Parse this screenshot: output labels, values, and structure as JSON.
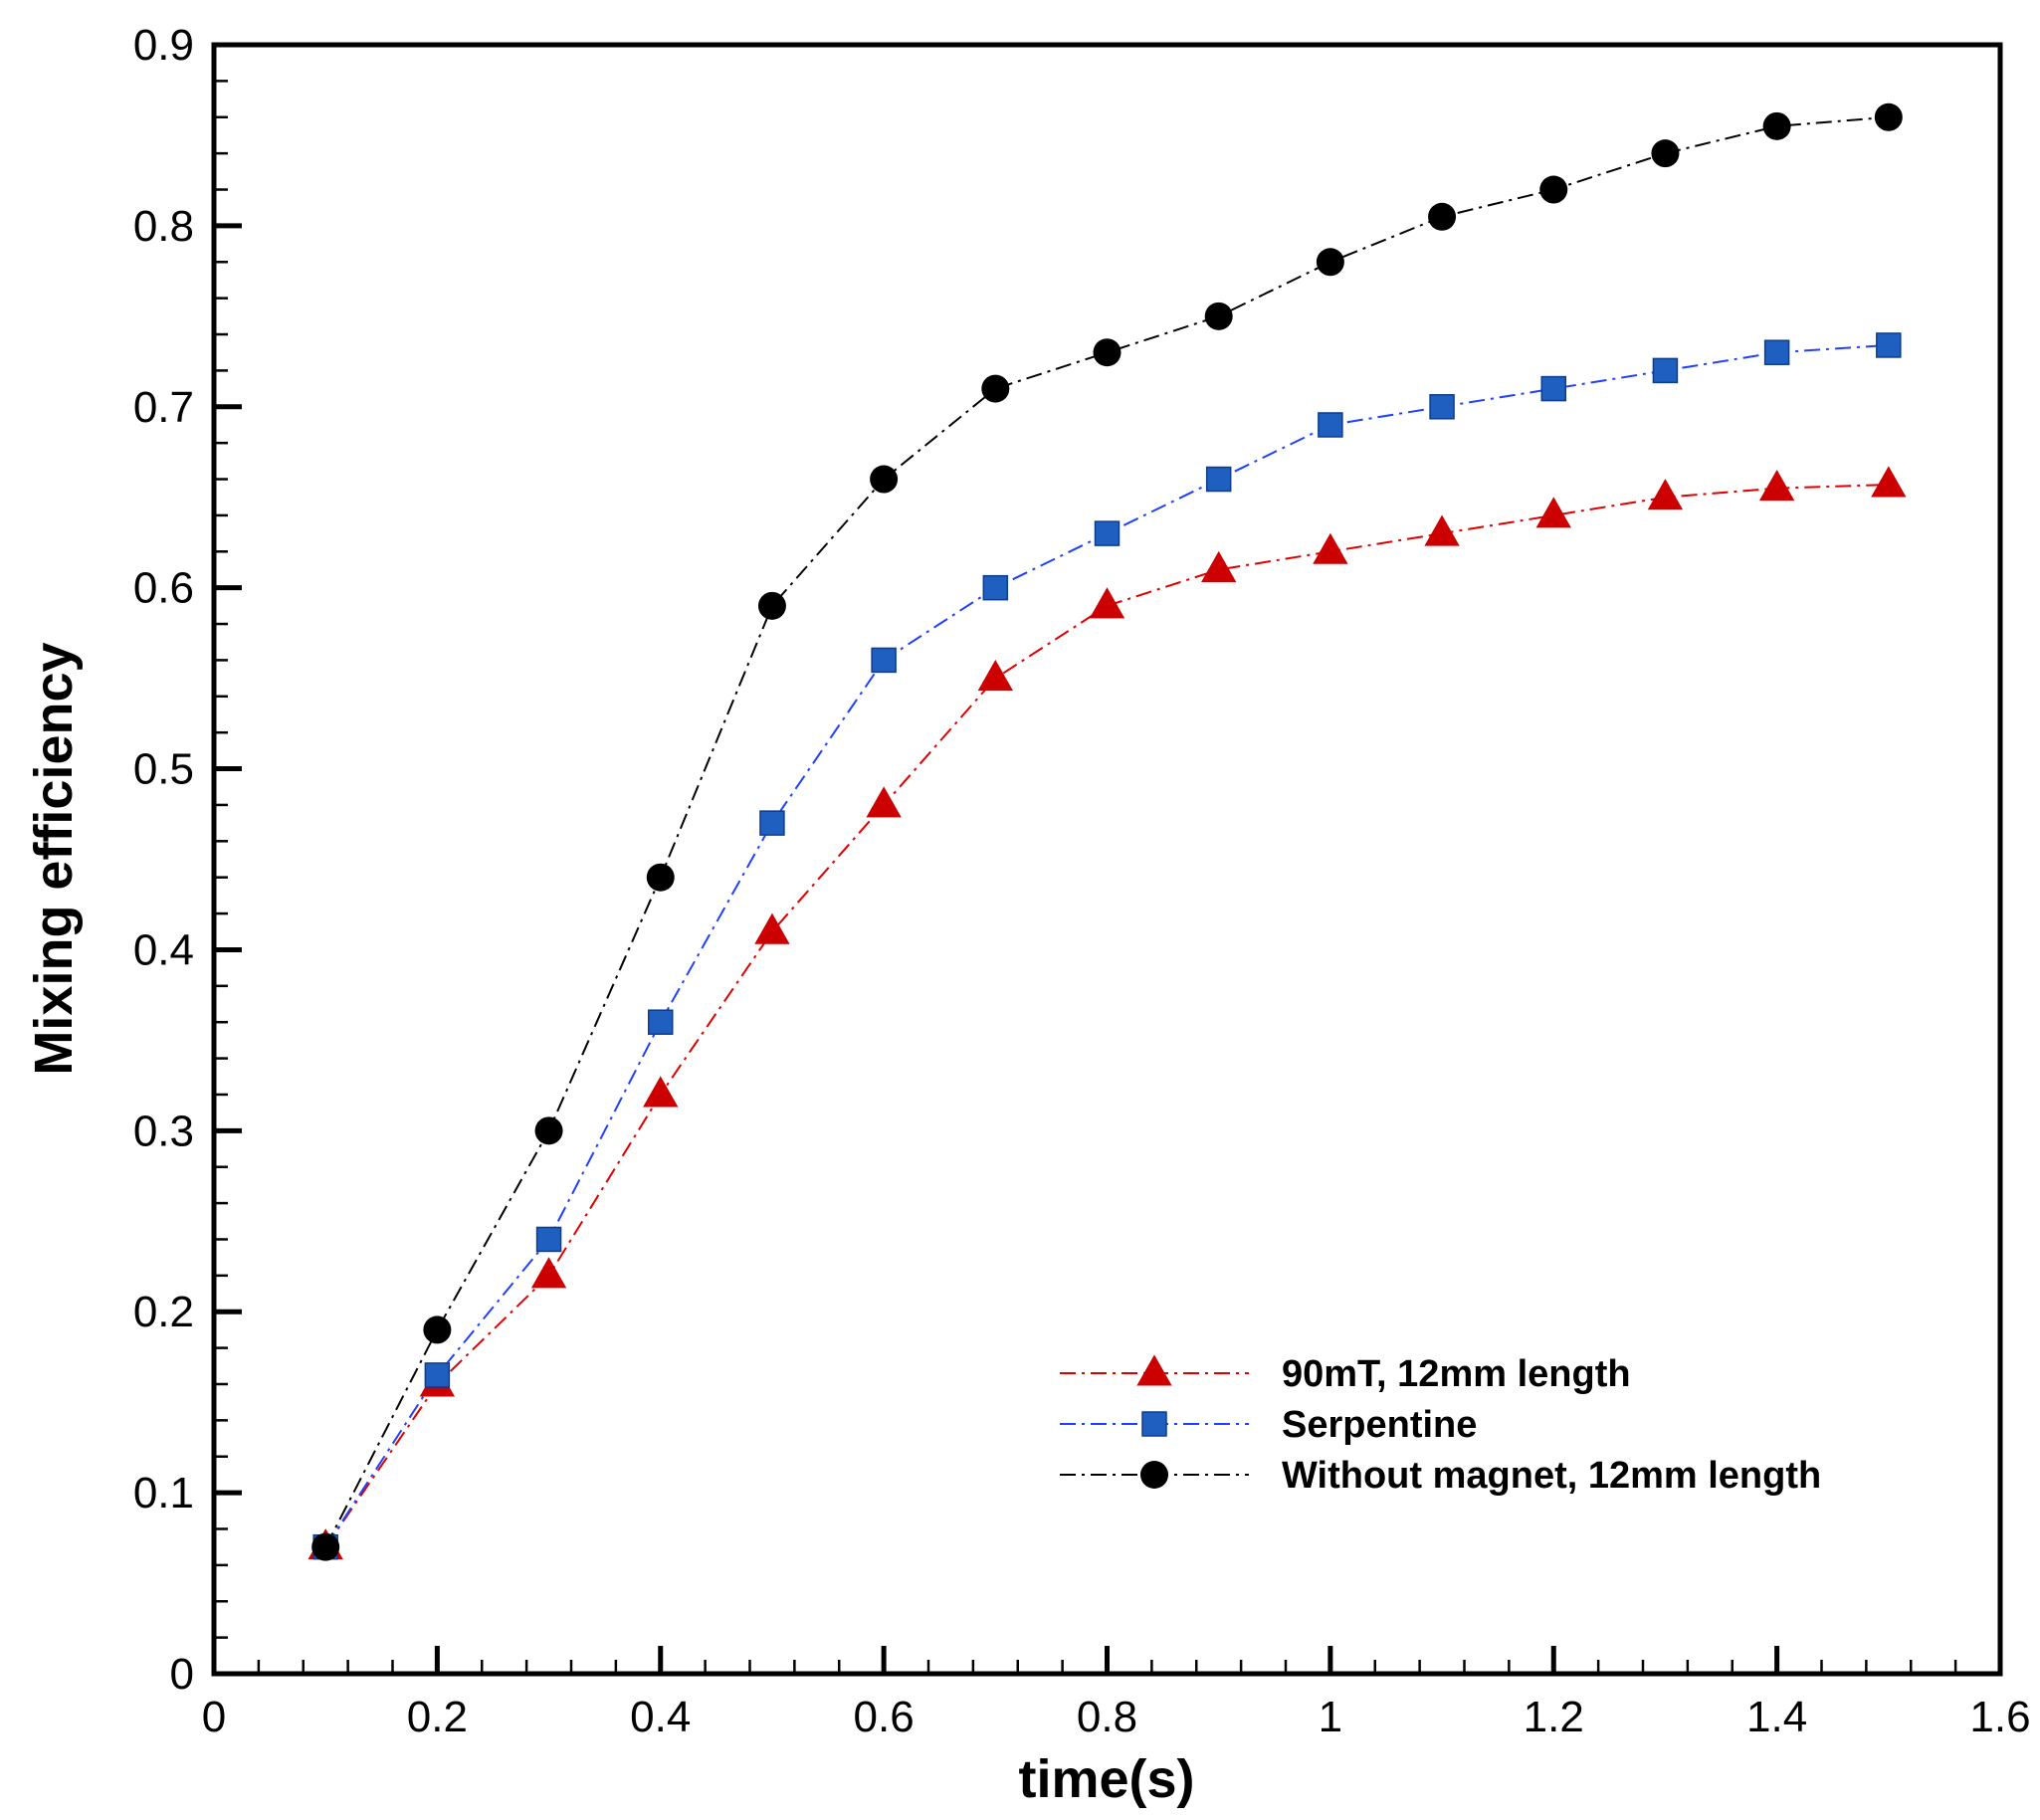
{
  "chart_data": {
    "type": "line",
    "title": "",
    "xlabel": "time(s)",
    "ylabel": "Mixing efficiency",
    "xlim": [
      0,
      1.6
    ],
    "ylim": [
      0,
      0.9
    ],
    "grid": false,
    "legend_position": "lower-right",
    "x_ticks": [
      {
        "value": 0,
        "label": "0"
      },
      {
        "value": 0.2,
        "label": "0.2"
      },
      {
        "value": 0.4,
        "label": "0.4"
      },
      {
        "value": 0.6,
        "label": "0.6"
      },
      {
        "value": 0.8,
        "label": "0.8"
      },
      {
        "value": 1.0,
        "label": "1"
      },
      {
        "value": 1.2,
        "label": "1.2"
      },
      {
        "value": 1.4,
        "label": "1.4"
      },
      {
        "value": 1.6,
        "label": "1.6"
      }
    ],
    "y_ticks": [
      {
        "value": 0,
        "label": "0"
      },
      {
        "value": 0.1,
        "label": "0.1"
      },
      {
        "value": 0.2,
        "label": "0.2"
      },
      {
        "value": 0.3,
        "label": "0.3"
      },
      {
        "value": 0.4,
        "label": "0.4"
      },
      {
        "value": 0.5,
        "label": "0.5"
      },
      {
        "value": 0.6,
        "label": "0.6"
      },
      {
        "value": 0.7,
        "label": "0.7"
      },
      {
        "value": 0.8,
        "label": "0.8"
      },
      {
        "value": 0.9,
        "label": "0.9"
      }
    ],
    "x": [
      0.1,
      0.2,
      0.3,
      0.4,
      0.5,
      0.6,
      0.7,
      0.8,
      0.9,
      1.0,
      1.1,
      1.2,
      1.3,
      1.4,
      1.5
    ],
    "series": [
      {
        "name": "90mT, 12mm length",
        "marker": "triangle",
        "color": "#e00000",
        "marker_color": "#cc0000",
        "values": [
          0.07,
          0.16,
          0.22,
          0.32,
          0.41,
          0.48,
          0.55,
          0.59,
          0.61,
          0.62,
          0.63,
          0.64,
          0.65,
          0.655,
          0.657
        ]
      },
      {
        "name": "Serpentine",
        "marker": "square",
        "color": "#2040ff",
        "marker_color": "#1f5fbf",
        "values": [
          0.07,
          0.165,
          0.24,
          0.36,
          0.47,
          0.56,
          0.6,
          0.63,
          0.66,
          0.69,
          0.7,
          0.71,
          0.72,
          0.73,
          0.734
        ]
      },
      {
        "name": "Without magnet, 12mm length",
        "marker": "circle",
        "color": "#000000",
        "marker_color": "#000000",
        "values": [
          0.07,
          0.19,
          0.3,
          0.44,
          0.59,
          0.66,
          0.71,
          0.73,
          0.75,
          0.78,
          0.805,
          0.82,
          0.84,
          0.855,
          0.86
        ]
      }
    ]
  }
}
